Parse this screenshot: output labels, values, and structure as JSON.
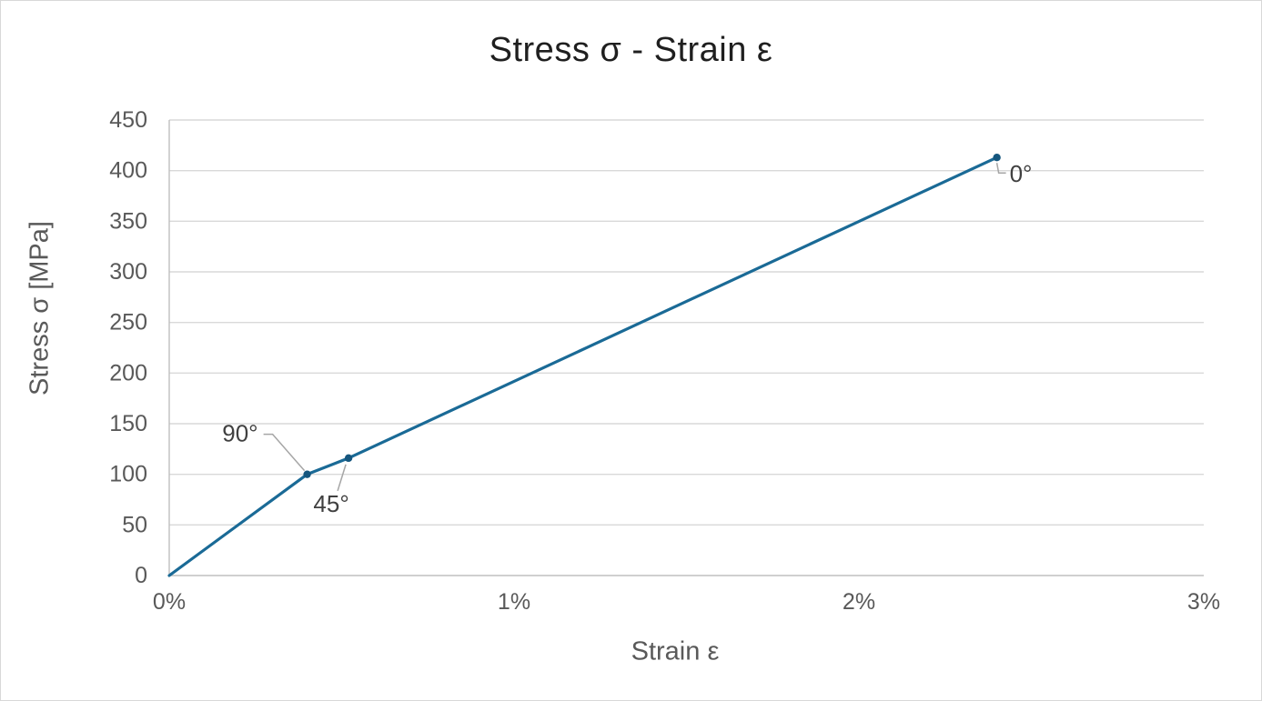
{
  "chart_data": {
    "type": "line",
    "title": "Stress σ - Strain ε",
    "xlabel": "Strain ε",
    "ylabel": "Stress σ [MPa]",
    "xlim": [
      0,
      3
    ],
    "ylim": [
      0,
      450
    ],
    "x_unit": "%",
    "grid": "horizontal-only",
    "legend_position": "none",
    "x_ticks": {
      "values": [
        0,
        1,
        2,
        3
      ],
      "labels": [
        "0%",
        "1%",
        "2%",
        "3%"
      ]
    },
    "y_ticks": {
      "values": [
        0,
        50,
        100,
        150,
        200,
        250,
        300,
        350,
        400,
        450
      ],
      "labels": [
        "0",
        "50",
        "100",
        "150",
        "200",
        "250",
        "300",
        "350",
        "400",
        "450"
      ]
    },
    "series": [
      {
        "name": "stress-strain-curve",
        "color": "#1A6A96",
        "marker_color": "#15567E",
        "points": [
          {
            "x": 0,
            "y": 0
          },
          {
            "x": 0.4,
            "y": 100,
            "label": "90°",
            "label_placement": "upper-left"
          },
          {
            "x": 0.52,
            "y": 116,
            "label": "45°",
            "label_placement": "below-left"
          },
          {
            "x": 2.4,
            "y": 413,
            "label": "0°",
            "label_placement": "lower-right"
          }
        ]
      }
    ],
    "colors": {
      "gridline": "#D9D9D9",
      "axis_line": "#BFBFBF",
      "tick_text": "#595959",
      "axis_title_text": "#595959",
      "title_text": "#1F1F1F",
      "data_label_text": "#404040",
      "leader_line": "#A6A6A6"
    }
  }
}
